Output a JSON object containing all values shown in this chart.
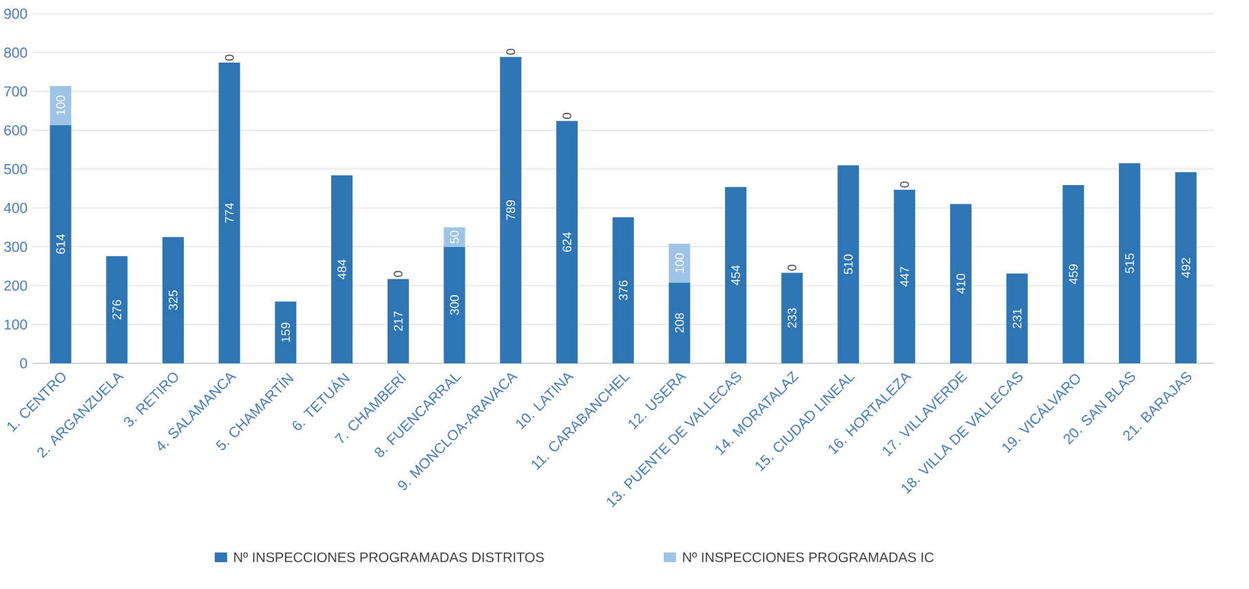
{
  "chart_data": {
    "type": "bar",
    "stacked": true,
    "categories": [
      "1. CENTRO",
      "2. ARGANZUELA",
      "3. RETIRO",
      "4. SALAMANCA",
      "5. CHAMARTÍN",
      "6. TETUÁN",
      "7. CHAMBERÍ",
      "8. FUENCARRAL",
      "9. MONCLOA-ARAVACA",
      "10. LATINA",
      "11. CARABANCHEL",
      "12. USERA",
      "13. PUENTE DE VALLECAS",
      "14. MORATALAZ",
      "15. CIUDAD LINEAL",
      "16. HORTALEZA",
      "17. VILLAVERDE",
      "18. VILLA DE VALLECAS",
      "19. VICÁLVARO",
      "20. SAN BLAS",
      "21. BARAJAS"
    ],
    "series": [
      {
        "name": "Nº INSPECCIONES PROGRAMADAS DISTRITOS",
        "color": "#2e75b6",
        "values": [
          614,
          276,
          325,
          774,
          159,
          484,
          217,
          300,
          789,
          624,
          376,
          208,
          454,
          233,
          510,
          447,
          410,
          231,
          459,
          515,
          492
        ],
        "value_labels": [
          "614",
          "276",
          "325",
          "774",
          "159",
          "484",
          "217",
          "300",
          "789",
          "624",
          "376",
          "208",
          "454",
          "233",
          "510",
          "447",
          "410",
          "231",
          "459",
          "515",
          "492"
        ]
      },
      {
        "name": "Nº INSPECCIONES PROGRAMADAS IC",
        "color": "#9dc3e6",
        "values": [
          100,
          null,
          null,
          0,
          null,
          null,
          0,
          50,
          0,
          0,
          null,
          100,
          null,
          0,
          null,
          0,
          null,
          null,
          null,
          null,
          null
        ],
        "value_labels": [
          "100",
          null,
          null,
          "0",
          null,
          null,
          "0",
          "50",
          "0",
          "0",
          null,
          "100",
          null,
          "0",
          null,
          "0",
          null,
          null,
          null,
          null,
          null
        ]
      }
    ],
    "ylim": [
      0,
      900
    ],
    "yticks": [
      0,
      100,
      200,
      300,
      400,
      500,
      600,
      700,
      800,
      900
    ],
    "grid": "y",
    "legend": "bottom"
  }
}
